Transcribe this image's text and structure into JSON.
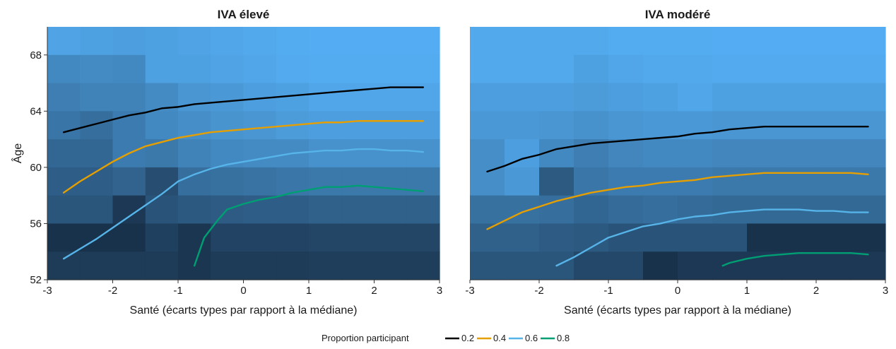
{
  "legend": {
    "title": "Proportion participant",
    "items": [
      {
        "label": "0.2",
        "color": "#000000"
      },
      {
        "label": "0.4",
        "color": "#E69F00"
      },
      {
        "label": "0.6",
        "color": "#56B4E9"
      },
      {
        "label": "0.8",
        "color": "#009E73"
      }
    ]
  },
  "chart_data": [
    {
      "type": "line",
      "title": "IVA élevé",
      "xlabel": "Santé (écarts types par rapport à la médiane)",
      "ylabel": "Âge",
      "xlim": [
        -3,
        3
      ],
      "ylim": [
        52,
        70
      ],
      "xticks": [
        -3,
        -2,
        -1,
        0,
        1,
        2,
        3
      ],
      "yticks": [
        52,
        56,
        60,
        64,
        68
      ],
      "grid": false,
      "legend_position": "bottom",
      "heatmap": {
        "x_edges": [
          -3,
          -2.5,
          -2,
          -1.5,
          -1,
          -0.5,
          0,
          0.5,
          1,
          1.5,
          2,
          2.5,
          3
        ],
        "y_edges": [
          52,
          54,
          56,
          58,
          60,
          62,
          64,
          66,
          68,
          70
        ],
        "values": [
          [
            0.9,
            0.88,
            0.86,
            0.88,
            0.9,
            0.92,
            0.94,
            0.96,
            0.97,
            0.97,
            0.97,
            0.97
          ],
          [
            0.7,
            0.72,
            0.7,
            0.88,
            0.88,
            0.9,
            0.92,
            0.95,
            0.96,
            0.96,
            0.96,
            0.96
          ],
          [
            0.62,
            0.66,
            0.66,
            0.72,
            0.8,
            0.82,
            0.86,
            0.88,
            0.92,
            0.92,
            0.92,
            0.92
          ],
          [
            0.55,
            0.5,
            0.6,
            0.7,
            0.74,
            0.78,
            0.8,
            0.84,
            0.86,
            0.86,
            0.86,
            0.86
          ],
          [
            0.45,
            0.45,
            0.6,
            0.58,
            0.66,
            0.7,
            0.72,
            0.72,
            0.76,
            0.76,
            0.76,
            0.76
          ],
          [
            0.38,
            0.38,
            0.42,
            0.26,
            0.5,
            0.52,
            0.54,
            0.56,
            0.58,
            0.58,
            0.58,
            0.58
          ],
          [
            0.32,
            0.32,
            0.1,
            0.3,
            0.34,
            0.36,
            0.38,
            0.38,
            0.4,
            0.4,
            0.4,
            0.4
          ],
          [
            0.05,
            0.05,
            0.05,
            0.16,
            0.08,
            0.18,
            0.18,
            0.18,
            0.2,
            0.2,
            0.2,
            0.2
          ],
          [
            0.12,
            0.12,
            0.12,
            0.12,
            0.08,
            0.12,
            0.12,
            0.12,
            0.14,
            0.14,
            0.14,
            0.14
          ]
        ]
      },
      "series": [
        {
          "name": "0.2",
          "x": [
            -2.75,
            -2.5,
            -2.25,
            -2,
            -1.75,
            -1.5,
            -1.25,
            -1,
            -0.75,
            -0.5,
            -0.25,
            0,
            0.25,
            0.5,
            0.75,
            1,
            1.25,
            1.5,
            1.75,
            2,
            2.25,
            2.5,
            2.75
          ],
          "y": [
            62.5,
            62.8,
            63.1,
            63.4,
            63.7,
            63.9,
            64.2,
            64.3,
            64.5,
            64.6,
            64.7,
            64.8,
            64.9,
            65.0,
            65.1,
            65.2,
            65.3,
            65.4,
            65.5,
            65.6,
            65.7,
            65.7,
            65.7
          ]
        },
        {
          "name": "0.4",
          "x": [
            -2.75,
            -2.5,
            -2.25,
            -2,
            -1.75,
            -1.5,
            -1.25,
            -1,
            -0.75,
            -0.5,
            -0.25,
            0,
            0.25,
            0.5,
            0.75,
            1,
            1.25,
            1.5,
            1.75,
            2,
            2.25,
            2.5,
            2.75
          ],
          "y": [
            58.2,
            59.0,
            59.7,
            60.4,
            61.0,
            61.5,
            61.8,
            62.1,
            62.3,
            62.5,
            62.6,
            62.7,
            62.8,
            62.9,
            63.0,
            63.1,
            63.2,
            63.2,
            63.3,
            63.3,
            63.3,
            63.3,
            63.3
          ]
        },
        {
          "name": "0.6",
          "x": [
            -2.75,
            -2.5,
            -2.25,
            -2,
            -1.75,
            -1.5,
            -1.25,
            -1,
            -0.75,
            -0.5,
            -0.25,
            0,
            0.25,
            0.5,
            0.75,
            1,
            1.25,
            1.5,
            1.75,
            2,
            2.25,
            2.5,
            2.75
          ],
          "y": [
            53.5,
            54.2,
            54.9,
            55.7,
            56.5,
            57.3,
            58.1,
            59.0,
            59.5,
            59.9,
            60.2,
            60.4,
            60.6,
            60.8,
            61.0,
            61.1,
            61.2,
            61.2,
            61.3,
            61.3,
            61.2,
            61.2,
            61.1
          ]
        },
        {
          "name": "0.8",
          "x": [
            -0.75,
            -0.6,
            -0.5,
            -0.4,
            -0.25,
            0,
            0.25,
            0.5,
            0.75,
            1,
            1.25,
            1.5,
            1.75,
            2,
            2.25,
            2.5,
            2.75
          ],
          "y": [
            53.0,
            55.0,
            55.6,
            56.2,
            57.0,
            57.4,
            57.7,
            57.9,
            58.2,
            58.4,
            58.6,
            58.6,
            58.7,
            58.6,
            58.5,
            58.4,
            58.3
          ]
        }
      ]
    },
    {
      "type": "line",
      "title": "IVA modéré",
      "xlabel": "Santé (écarts types par rapport à la médiane)",
      "ylabel": "",
      "xlim": [
        -3,
        3
      ],
      "ylim": [
        52,
        70
      ],
      "xticks": [
        -3,
        -2,
        -1,
        0,
        1,
        2,
        3
      ],
      "yticks": [
        52,
        56,
        60,
        64,
        68
      ],
      "grid": false,
      "legend_position": "bottom",
      "heatmap": {
        "x_edges": [
          -3,
          -2.5,
          -2,
          -1.5,
          -1,
          -0.5,
          0,
          0.5,
          1,
          1.5,
          2,
          2.5,
          3
        ],
        "y_edges": [
          52,
          54,
          56,
          58,
          60,
          62,
          64,
          66,
          68,
          70
        ],
        "values": [
          [
            0.94,
            0.94,
            0.94,
            0.94,
            0.96,
            0.96,
            0.96,
            0.97,
            0.97,
            0.97,
            0.97,
            0.97
          ],
          [
            0.94,
            0.94,
            0.94,
            0.88,
            0.92,
            0.94,
            0.94,
            0.95,
            0.95,
            0.95,
            0.95,
            0.95
          ],
          [
            0.86,
            0.86,
            0.86,
            0.84,
            0.86,
            0.88,
            0.92,
            0.88,
            0.88,
            0.88,
            0.88,
            0.88
          ],
          [
            0.82,
            0.82,
            0.8,
            0.76,
            0.8,
            0.82,
            0.82,
            0.8,
            0.8,
            0.8,
            0.8,
            0.8
          ],
          [
            0.74,
            0.86,
            0.7,
            0.62,
            0.68,
            0.7,
            0.7,
            0.68,
            0.68,
            0.68,
            0.68,
            0.68
          ],
          [
            0.74,
            0.82,
            0.35,
            0.56,
            0.6,
            0.6,
            0.6,
            0.58,
            0.58,
            0.58,
            0.58,
            0.58
          ],
          [
            0.52,
            0.52,
            0.5,
            0.44,
            0.48,
            0.5,
            0.48,
            0.46,
            0.46,
            0.46,
            0.46,
            0.46
          ],
          [
            0.4,
            0.4,
            0.36,
            0.34,
            0.3,
            0.3,
            0.3,
            0.3,
            0.05,
            0.05,
            0.05,
            0.05
          ],
          [
            0.32,
            0.32,
            0.32,
            0.22,
            0.22,
            0.05,
            0.1,
            0.1,
            0.1,
            0.1,
            0.1,
            0.1
          ]
        ]
      },
      "series": [
        {
          "name": "0.2",
          "x": [
            -2.75,
            -2.5,
            -2.25,
            -2,
            -1.75,
            -1.5,
            -1.25,
            -1,
            -0.75,
            -0.5,
            -0.25,
            0,
            0.25,
            0.5,
            0.75,
            1,
            1.25,
            1.5,
            1.75,
            2,
            2.25,
            2.5,
            2.75
          ],
          "y": [
            59.7,
            60.1,
            60.6,
            60.9,
            61.3,
            61.5,
            61.7,
            61.8,
            61.9,
            62.0,
            62.1,
            62.2,
            62.4,
            62.5,
            62.7,
            62.8,
            62.9,
            62.9,
            62.9,
            62.9,
            62.9,
            62.9,
            62.9
          ]
        },
        {
          "name": "0.4",
          "x": [
            -2.75,
            -2.5,
            -2.25,
            -2,
            -1.75,
            -1.5,
            -1.25,
            -1,
            -0.75,
            -0.5,
            -0.25,
            0,
            0.25,
            0.5,
            0.75,
            1,
            1.25,
            1.5,
            1.75,
            2,
            2.25,
            2.5,
            2.75
          ],
          "y": [
            55.6,
            56.2,
            56.8,
            57.2,
            57.6,
            57.9,
            58.2,
            58.4,
            58.6,
            58.7,
            58.9,
            59.0,
            59.1,
            59.3,
            59.4,
            59.5,
            59.6,
            59.6,
            59.6,
            59.6,
            59.6,
            59.6,
            59.5
          ]
        },
        {
          "name": "0.6",
          "x": [
            -1.75,
            -1.5,
            -1.25,
            -1,
            -0.75,
            -0.5,
            -0.25,
            0,
            0.25,
            0.5,
            0.75,
            1,
            1.25,
            1.5,
            1.75,
            2,
            2.25,
            2.5,
            2.75
          ],
          "y": [
            53.0,
            53.6,
            54.3,
            55.0,
            55.4,
            55.8,
            56.0,
            56.3,
            56.5,
            56.6,
            56.8,
            56.9,
            57.0,
            57.0,
            57.0,
            56.9,
            56.9,
            56.8,
            56.8
          ]
        },
        {
          "name": "0.8",
          "x": [
            0.65,
            0.75,
            1,
            1.25,
            1.5,
            1.75,
            2,
            2.25,
            2.5,
            2.75
          ],
          "y": [
            53.0,
            53.2,
            53.5,
            53.7,
            53.8,
            53.9,
            53.9,
            53.9,
            53.9,
            53.8
          ]
        }
      ]
    }
  ]
}
